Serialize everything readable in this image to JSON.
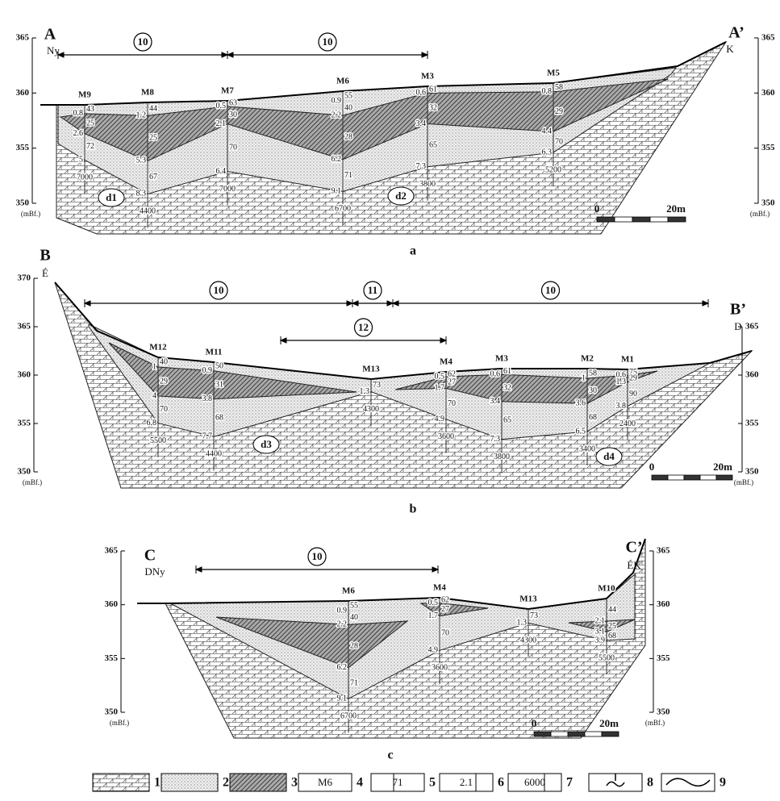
{
  "sections": [
    {
      "caption": "a",
      "start": {
        "letter": "A",
        "direction": "Ny"
      },
      "end": {
        "letter": "A’",
        "direction": "K"
      },
      "left_ticks": [
        365,
        360,
        355,
        350
      ],
      "right_ticks": [
        365,
        360,
        355,
        350
      ],
      "unit_left": "(mBf.)",
      "unit_right": "(mBf.)",
      "spans": [
        {
          "label": 10
        },
        {
          "label": 10
        }
      ],
      "zones": [
        "d1",
        "d2"
      ],
      "scale": {
        "start": 0,
        "end": "20m"
      },
      "boreholes": [
        {
          "name": "M9",
          "depths": [
            0.8,
            2.6,
            5.0
          ],
          "values": [
            43,
            25,
            72
          ],
          "bottom": 7000
        },
        {
          "name": "M8",
          "depths": [
            1.2,
            5.3,
            8.3
          ],
          "values": [
            44,
            25,
            67
          ],
          "bottom": 4400
        },
        {
          "name": "M7",
          "depths": [
            0.5,
            2.1,
            6.4
          ],
          "values": [
            63,
            30,
            70
          ],
          "bottom": 7000
        },
        {
          "name": "M6",
          "depths": [
            0.9,
            2.2,
            6.2,
            9.1
          ],
          "values": [
            55,
            40,
            28,
            71
          ],
          "bottom": 6700
        },
        {
          "name": "M3",
          "depths": [
            0.6,
            3.4,
            7.3
          ],
          "values": [
            61,
            32,
            65
          ],
          "bottom": 3800
        },
        {
          "name": "M5",
          "depths": [
            0.8,
            4.4,
            6.3
          ],
          "values": [
            58,
            29,
            70
          ],
          "bottom": 5200
        }
      ]
    },
    {
      "caption": "b",
      "start": {
        "letter": "B",
        "direction": "É"
      },
      "end": {
        "letter": "B’",
        "direction": "D"
      },
      "left_ticks": [
        370,
        365,
        360,
        355,
        350
      ],
      "right_ticks": [
        365,
        360,
        355,
        350
      ],
      "unit_left": "(mBf.)",
      "unit_right": "(mBf.)",
      "spans": [
        {
          "label": 10
        },
        {
          "label": 11
        },
        {
          "label": 10
        },
        {
          "label": 12
        }
      ],
      "zones": [
        "d3",
        "d4"
      ],
      "scale": {
        "start": 0,
        "end": "20m"
      },
      "boreholes": [
        {
          "name": "M12",
          "depths": [
            1.0,
            4.0,
            6.8
          ],
          "values": [
            40,
            29,
            70
          ],
          "bottom": 5500
        },
        {
          "name": "M11",
          "depths": [
            0.9,
            3.8,
            7.7
          ],
          "values": [
            50,
            31,
            68
          ],
          "bottom": 4400
        },
        {
          "name": "M13",
          "depths": [
            1.3
          ],
          "values": [
            73
          ],
          "bottom": 4300
        },
        {
          "name": "M4",
          "depths": [
            0.5,
            1.7,
            4.9
          ],
          "values": [
            62,
            27,
            70
          ],
          "bottom": 3600
        },
        {
          "name": "M3",
          "depths": [
            0.6,
            3.4,
            7.3
          ],
          "values": [
            61,
            32,
            65
          ],
          "bottom": 3800
        },
        {
          "name": "M2",
          "depths": [
            1.0,
            3.6,
            6.5
          ],
          "values": [
            58,
            30,
            68
          ],
          "bottom": 3400
        },
        {
          "name": "M1",
          "depths": [
            0.6,
            1.3,
            3.8
          ],
          "values": [
            75,
            29,
            90
          ],
          "bottom": 2400
        }
      ]
    },
    {
      "caption": "c",
      "start": {
        "letter": "C",
        "direction": "DNy"
      },
      "end": {
        "letter": "C’",
        "direction": "ÉK"
      },
      "left_ticks": [
        365,
        360,
        355,
        350
      ],
      "right_ticks": [
        365,
        360,
        355,
        350
      ],
      "unit_left": "(mBf.)",
      "unit_right": "(mBf.)",
      "spans": [
        {
          "label": 10
        }
      ],
      "zones": [],
      "scale": {
        "start": 0,
        "end": "20m"
      },
      "boreholes": [
        {
          "name": "M6",
          "depths": [
            0.9,
            2.2,
            6.2,
            9.1
          ],
          "values": [
            55,
            40,
            28,
            71
          ],
          "bottom": 6700
        },
        {
          "name": "M4",
          "depths": [
            0.5,
            1.7,
            4.9
          ],
          "values": [
            62,
            27,
            70
          ],
          "bottom": 3600
        },
        {
          "name": "M13",
          "depths": [
            1.3
          ],
          "values": [
            73
          ],
          "bottom": 4300
        },
        {
          "name": "M10",
          "depths": [
            2.1,
            3.1,
            3.9
          ],
          "values": [
            44,
            25,
            68
          ],
          "bottom": 5500
        }
      ]
    }
  ],
  "legend": [
    {
      "number": 1
    },
    {
      "number": 2
    },
    {
      "number": 3
    },
    {
      "sample": "M6",
      "number": 4
    },
    {
      "sample": 71,
      "number": 5
    },
    {
      "sample": 2.1,
      "number": 6
    },
    {
      "sample": 6000,
      "number": 7
    },
    {
      "number": 8
    },
    {
      "number": 9
    }
  ]
}
